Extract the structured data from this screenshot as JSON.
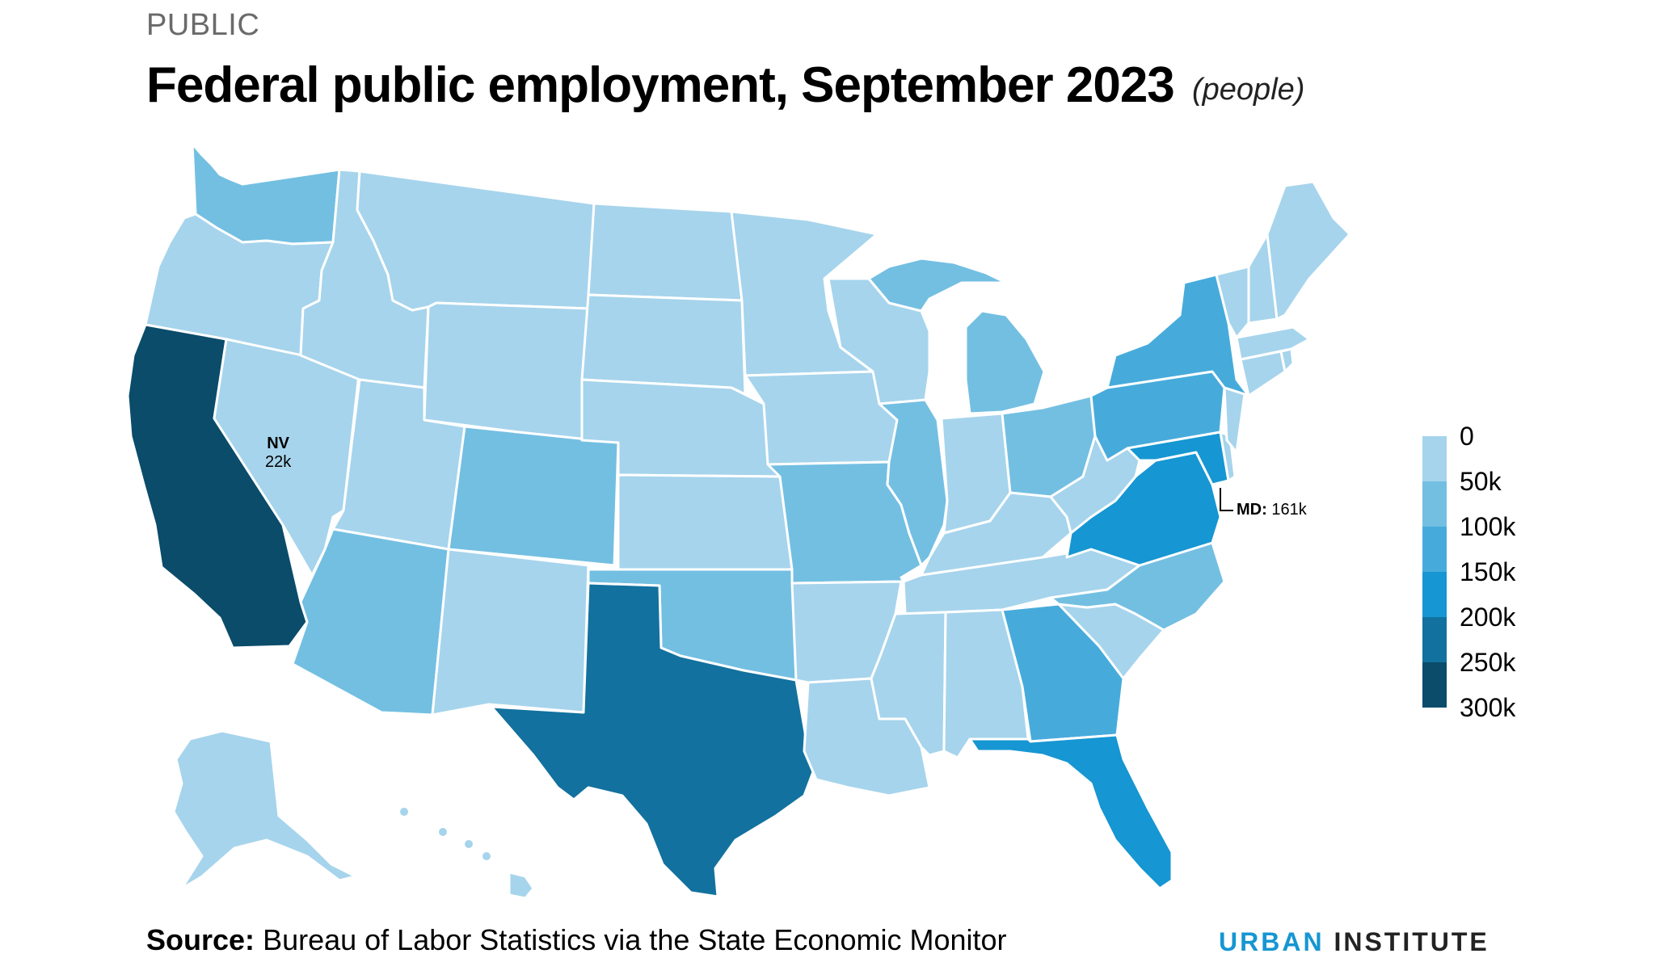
{
  "header": {
    "section": "PUBLIC",
    "title": "Federal public employment, September 2023",
    "unit": "(people)"
  },
  "colors": {
    "bin0": "#a6d4ec",
    "bin1": "#73bfe2",
    "bin2": "#46abdb",
    "bin3": "#1696d2",
    "bin4": "#12719e",
    "bin5": "#0a4c6a",
    "border": "#ffffff",
    "brand_blue": "#1696d2"
  },
  "legend": {
    "ticks": [
      "0",
      "50k",
      "100k",
      "150k",
      "200k",
      "250k",
      "300k"
    ]
  },
  "annotations": {
    "nv": {
      "state": "NV",
      "value": "22k"
    },
    "md": {
      "state": "MD:",
      "value": "161k"
    }
  },
  "chart_data": {
    "type": "choropleth",
    "title": "Federal public employment, September 2023",
    "unit": "people",
    "bins": [
      0,
      50000,
      100000,
      150000,
      200000,
      250000,
      300000
    ],
    "states": [
      {
        "state": "NV",
        "value": 22000
      },
      {
        "state": "MD",
        "value": 161000
      }
    ]
  },
  "footer": {
    "source_label": "Source:",
    "source_text": "Bureau of Labor Statistics via the State Economic Monitor",
    "brand_urban": "URBAN",
    "brand_institute": "INSTITUTE"
  }
}
